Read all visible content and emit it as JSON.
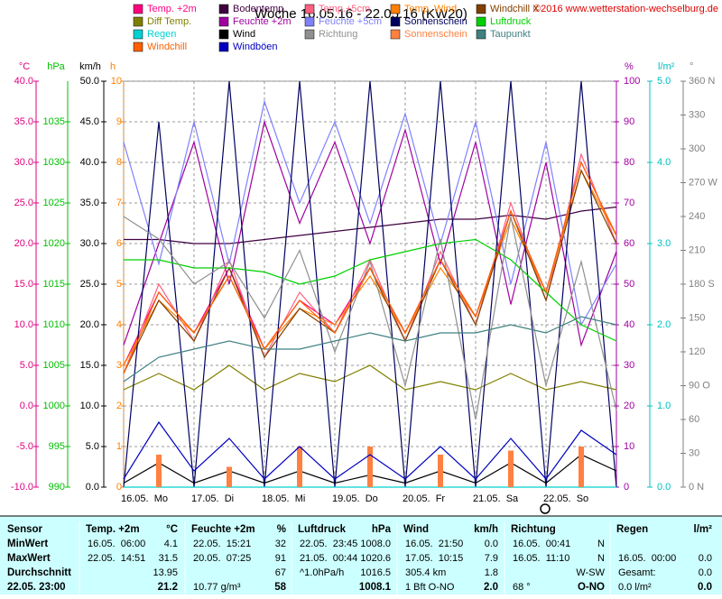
{
  "chart_data": {
    "type": "line",
    "title": "Woche 16.05.16 - 22.05.16 (KW20)",
    "copyright": "©2016 www.wetterstation-wechselburg.de",
    "x": [
      0,
      12,
      24,
      36,
      48,
      60,
      72,
      84,
      96,
      108,
      120,
      132,
      144,
      156,
      168
    ],
    "xlim": [
      0,
      168
    ],
    "xticks": [
      {
        "value": 0,
        "label": "16.05.  Mo"
      },
      {
        "value": 24,
        "label": "17.05.  Di"
      },
      {
        "value": 48,
        "label": "18.05.  Mi"
      },
      {
        "value": 72,
        "label": "19.05.  Do"
      },
      {
        "value": 96,
        "label": "20.05.  Fr"
      },
      {
        "value": 120,
        "label": "21.05.  Sa"
      },
      {
        "value": 144,
        "label": "22.05.  So"
      }
    ],
    "grid": true,
    "axes": [
      {
        "id": "C",
        "label": "°C",
        "color": "#e0007f",
        "lim": [
          -10,
          40
        ],
        "ticks": [
          {
            "value": -10,
            "label": "-10.0"
          },
          {
            "value": -5,
            "label": "-5.0"
          },
          {
            "value": 0,
            "label": "0.0"
          },
          {
            "value": 5,
            "label": "5.0"
          },
          {
            "value": 10,
            "label": "10.0"
          },
          {
            "value": 15,
            "label": "15.0"
          },
          {
            "value": 20,
            "label": "20.0"
          },
          {
            "value": 25,
            "label": "25.0"
          },
          {
            "value": 30,
            "label": "30.0"
          },
          {
            "value": 35,
            "label": "35.0"
          },
          {
            "value": 40,
            "label": "40.0"
          }
        ]
      },
      {
        "id": "P",
        "label": "hPa",
        "color": "#00c000",
        "lim": [
          990,
          1040
        ],
        "ticks": [
          990,
          995,
          1000,
          1005,
          1010,
          1015,
          1020,
          1025,
          1030,
          1035
        ]
      },
      {
        "id": "K",
        "label": "km/h",
        "color": "#000000",
        "lim": [
          0,
          50
        ],
        "ticks": [
          {
            "value": 0,
            "label": "0.0"
          },
          {
            "value": 5,
            "label": "5.0"
          },
          {
            "value": 10,
            "label": "10.0"
          },
          {
            "value": 15,
            "label": "15.0"
          },
          {
            "value": 20,
            "label": "20.0"
          },
          {
            "value": 25,
            "label": "25.0"
          },
          {
            "value": 30,
            "label": "30.0"
          },
          {
            "value": 35,
            "label": "35.0"
          },
          {
            "value": 40,
            "label": "40.0"
          },
          {
            "value": 45,
            "label": "45.0"
          },
          {
            "value": 50,
            "label": "50.0"
          }
        ]
      },
      {
        "id": "H",
        "label": "h",
        "color": "#ff8000",
        "lim": [
          0,
          10
        ],
        "ticks": [
          0,
          1,
          2,
          3,
          4,
          5,
          6,
          7,
          8,
          9,
          10
        ]
      },
      {
        "id": "F",
        "label": "%",
        "color": "#a000a0",
        "lim": [
          0,
          100
        ],
        "ticks": [
          0,
          10,
          20,
          30,
          40,
          50,
          60,
          70,
          80,
          90,
          100
        ]
      },
      {
        "id": "R",
        "label": "l/m²",
        "color": "#00c0c0",
        "lim": [
          0,
          5
        ],
        "ticks": [
          {
            "value": 0,
            "label": "0.0"
          },
          {
            "value": 1,
            "label": "1.0"
          },
          {
            "value": 2,
            "label": "2.0"
          },
          {
            "value": 3,
            "label": "3.0"
          },
          {
            "value": 4,
            "label": "4.0"
          },
          {
            "value": 5,
            "label": "5.0"
          }
        ]
      },
      {
        "id": "D",
        "label": "°",
        "color": "#808080",
        "lim": [
          0,
          360
        ],
        "ticks": [
          {
            "value": 0,
            "label": "0 N"
          },
          30,
          60,
          {
            "value": 90,
            "label": "90 O"
          },
          120,
          150,
          {
            "value": 180,
            "label": "180 S"
          },
          210,
          240,
          {
            "value": 270,
            "label": "270 W"
          },
          300,
          330,
          {
            "value": 360,
            "label": "360 N"
          }
        ]
      }
    ],
    "series": [
      {
        "name": "Temp. +2m",
        "color": "#ff0080",
        "axis": "C",
        "values": [
          5,
          14,
          9,
          17,
          7,
          13,
          10,
          17,
          9,
          18,
          11,
          24,
          14,
          30,
          21
        ]
      },
      {
        "name": "Bodentemp.",
        "color": "#400040",
        "axis": "C",
        "values": [
          20.5,
          20.5,
          20,
          20,
          20.5,
          21,
          21.5,
          22,
          22.5,
          23,
          23,
          23.5,
          23,
          24,
          24.5
        ]
      },
      {
        "name": "Temp.+5cm",
        "color": "#ff6080",
        "axis": "C",
        "values": [
          4,
          15,
          8,
          18,
          6,
          14,
          9,
          18,
          8,
          19,
          10,
          25,
          13,
          31,
          20
        ]
      },
      {
        "name": "Temp. Wind",
        "color": "#ff8000",
        "axis": "C",
        "values": [
          5,
          13,
          9,
          16,
          7,
          12,
          10,
          16,
          9,
          17,
          11,
          23,
          14,
          29,
          21
        ]
      },
      {
        "name": "Windchill X",
        "color": "#804000",
        "axis": "C",
        "values": [
          4,
          13,
          8,
          17,
          6,
          12,
          9,
          17,
          8,
          18,
          10,
          24,
          13,
          29,
          20
        ]
      },
      {
        "name": "Diff Temp.",
        "color": "#808000",
        "axis": "C",
        "values": [
          2,
          4,
          2,
          5,
          2,
          4,
          3,
          5,
          2,
          3,
          2,
          4,
          2,
          3,
          2
        ]
      },
      {
        "name": "Feuchte +2m",
        "color": "#a000a0",
        "axis": "F",
        "values": [
          35,
          60,
          85,
          50,
          90,
          65,
          85,
          60,
          88,
          55,
          85,
          45,
          80,
          35,
          58
        ]
      },
      {
        "name": "Feuchte +5cm",
        "color": "#8080ff",
        "axis": "F",
        "values": [
          85,
          55,
          90,
          55,
          95,
          70,
          90,
          65,
          92,
          60,
          90,
          50,
          85,
          40,
          55
        ]
      },
      {
        "name": "Sonnenschein",
        "color": "#000060",
        "axis": "H",
        "values": [
          0,
          9,
          0,
          10,
          0,
          10,
          0,
          10,
          0,
          10,
          0,
          10,
          0,
          10,
          0
        ]
      },
      {
        "name": "Luftdruck",
        "color": "#00d000",
        "axis": "P",
        "values": [
          1018,
          1018,
          1017,
          1017,
          1016.5,
          1015,
          1016,
          1018,
          1019,
          1020,
          1020.5,
          1018,
          1014,
          1010,
          1008
        ]
      },
      {
        "name": "Regen",
        "color": "#00d0d0",
        "axis": "R",
        "values": [
          0,
          0,
          0,
          0,
          0,
          0,
          0,
          0,
          0,
          0,
          0,
          0,
          0,
          0,
          0
        ]
      },
      {
        "name": "Wind",
        "color": "#000000",
        "axis": "K",
        "values": [
          0.5,
          3,
          0.5,
          2,
          0.5,
          2,
          0.5,
          1.5,
          0.5,
          2,
          0.5,
          3,
          0.5,
          4,
          2
        ]
      },
      {
        "name": "Richtung",
        "color": "#909090",
        "axis": "D",
        "values": [
          240,
          220,
          180,
          200,
          150,
          210,
          120,
          200,
          90,
          220,
          60,
          240,
          90,
          200,
          68
        ]
      },
      {
        "name": "Sonnenschein",
        "color": "#ff8040",
        "axis": "H",
        "kind": "bar",
        "values": [
          0,
          0.8,
          0,
          0.5,
          0,
          1,
          0,
          1,
          0,
          0.8,
          0,
          0.9,
          0,
          1,
          0
        ]
      },
      {
        "name": "Taupunkt",
        "color": "#408080",
        "axis": "C",
        "values": [
          3,
          6,
          7,
          8,
          7,
          7,
          8,
          9,
          8,
          9,
          9,
          10,
          9,
          11,
          10
        ]
      },
      {
        "name": "Windchill",
        "color": "#ff6000",
        "axis": "C",
        "values": [
          4,
          14,
          9,
          16,
          7,
          13,
          9,
          17,
          9,
          18,
          11,
          24,
          14,
          30,
          21
        ]
      },
      {
        "name": "Windböen",
        "color": "#0000c0",
        "axis": "K",
        "values": [
          1,
          8,
          2,
          6,
          1,
          5,
          1,
          4,
          1,
          5,
          1,
          6,
          1,
          7,
          4
        ]
      }
    ]
  },
  "table": {
    "sensor": "Sensor",
    "columns": [
      {
        "name": "Temp. +2m",
        "unit": "°C"
      },
      {
        "name": "Feuchte +2m",
        "unit": "%"
      },
      {
        "name": "Luftdruck",
        "unit": "hPa"
      },
      {
        "name": "Wind",
        "unit": "km/h"
      },
      {
        "name": "Richtung"
      },
      {
        "name": "Regen",
        "unit": "l/m²"
      }
    ],
    "rows": [
      {
        "label": "MinWert",
        "cells": [
          [
            "16.05.  06:00",
            "4.1"
          ],
          [
            "22.05.  15:21",
            "32"
          ],
          [
            "22.05.  23:45",
            "1008.0"
          ],
          [
            "16.05.  21:50",
            "0.0"
          ],
          [
            "16.05.  00:41",
            "N"
          ],
          null
        ]
      },
      {
        "label": "MaxWert",
        "cells": [
          [
            "22.05.  14:51",
            "31.5"
          ],
          [
            "20.05.  07:25",
            "91"
          ],
          [
            "21.05.  00:44",
            "1020.6"
          ],
          [
            "17.05.  10:15",
            "7.9"
          ],
          [
            "16.05.  11:10",
            "N"
          ],
          [
            "16.05.  00:00",
            "0.0"
          ]
        ]
      },
      {
        "label": "Durchschnitt",
        "cells": [
          [
            "13.95"
          ],
          [
            "67"
          ],
          [
            "^1.0hPa/h",
            "1016.5"
          ],
          [
            "305.4 km",
            "1.8"
          ],
          [
            "W-SW"
          ],
          [
            "Gesamt:",
            "0.0"
          ]
        ]
      },
      {
        "label": "22.05. 23:00",
        "current": true,
        "cells": [
          [
            "21.2"
          ],
          [
            "10.77 g/m³",
            "58"
          ],
          [
            "1008.1"
          ],
          [
            "1 Bft O-NO",
            "2.0"
          ],
          [
            "68 °",
            "O-NO"
          ],
          [
            "0.0 l/m²",
            "0.0"
          ]
        ]
      }
    ]
  }
}
